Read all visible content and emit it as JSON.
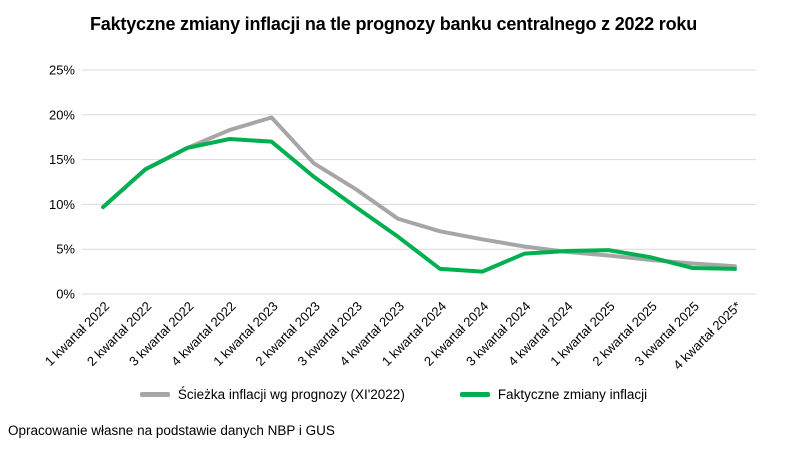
{
  "header": {
    "title": "Faktyczne zmiany inflacji na tle prognozy banku centralnego z 2022 roku"
  },
  "legend": {
    "items": [
      {
        "label": "Ścieżka inflacji wg prognozy (XI'2022)",
        "color": "#A6A6A6"
      },
      {
        "label": "Faktyczne zmiany inflacji",
        "color": "#00B050"
      }
    ]
  },
  "footer": {
    "source": "Opracowanie własne na podstawie danych NBP i GUS"
  },
  "chart_data": {
    "type": "line",
    "title": "Faktyczne zmiany inflacji na tle prognozy banku centralnego z 2022 roku",
    "categories": [
      "1 kwartał 2022",
      "2 kwartał 2022",
      "3 kwartał 2022",
      "4 kwartał 2022",
      "1 kwartał 2023",
      "2 kwartał 2023",
      "3 kwartał 2023",
      "4 kwartał 2023",
      "1 kwartał 2024",
      "2 kwartał 2024",
      "3 kwartał 2024",
      "4 kwartał 2024",
      "1 kwartał 2025",
      "2 kwartał 2025",
      "3 kwartał 2025",
      "4 kwartał 2025*"
    ],
    "series": [
      {
        "name": "Ścieżka inflacji wg prognozy (XI'2022)",
        "color": "#A6A6A6",
        "values": [
          9.7,
          13.9,
          16.3,
          18.3,
          19.7,
          14.6,
          11.7,
          8.4,
          7.0,
          6.1,
          5.3,
          4.7,
          4.3,
          3.8,
          3.4,
          3.1
        ]
      },
      {
        "name": "Faktyczne zmiany inflacji",
        "color": "#00B050",
        "values": [
          9.7,
          13.9,
          16.3,
          17.3,
          17.0,
          13.1,
          9.7,
          6.4,
          2.8,
          2.5,
          4.5,
          4.8,
          4.9,
          4.1,
          2.9,
          2.8
        ]
      }
    ],
    "xlabel": "",
    "ylabel": "",
    "ylim": [
      0,
      25
    ],
    "yticks": [
      0,
      5,
      10,
      15,
      20,
      25
    ],
    "ytick_labels": [
      "0%",
      "5%",
      "10%",
      "15%",
      "20%",
      "25%"
    ],
    "x_label_rotation": -45,
    "grid": true,
    "legend_position": "bottom",
    "colors": {
      "gridline": "#D9D9D9",
      "axis_text": "#000000",
      "background": "#FFFFFF"
    }
  }
}
